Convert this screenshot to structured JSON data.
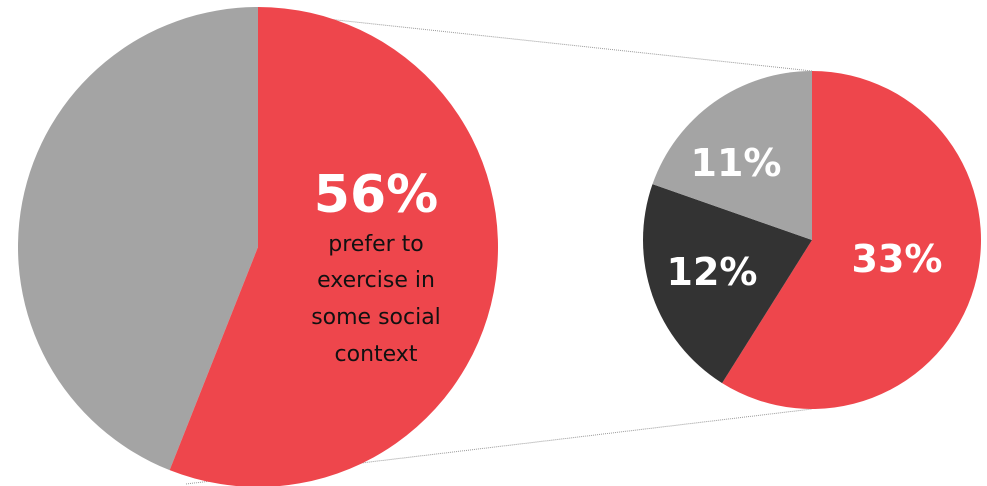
{
  "chart_data": [
    {
      "type": "pie",
      "slices": [
        {
          "value": 56,
          "color": "#ee464c",
          "label": "56%"
        },
        {
          "value": 44,
          "color": "#a4a4a4",
          "label": ""
        }
      ],
      "callout": {
        "value_label": "56%",
        "lines": [
          "prefer to",
          "exercise in",
          "some social",
          "context"
        ]
      }
    },
    {
      "type": "pie",
      "slices": [
        {
          "value": 33,
          "color": "#ee464c",
          "label": "33%"
        },
        {
          "value": 12,
          "color": "#333333",
          "label": "12%"
        },
        {
          "value": 11,
          "color": "#a4a4a4",
          "label": "11%"
        }
      ]
    }
  ],
  "colors": {
    "accent": "#ee464c",
    "gray": "#a4a4a4",
    "dark": "#333333",
    "connector": "#999999"
  }
}
